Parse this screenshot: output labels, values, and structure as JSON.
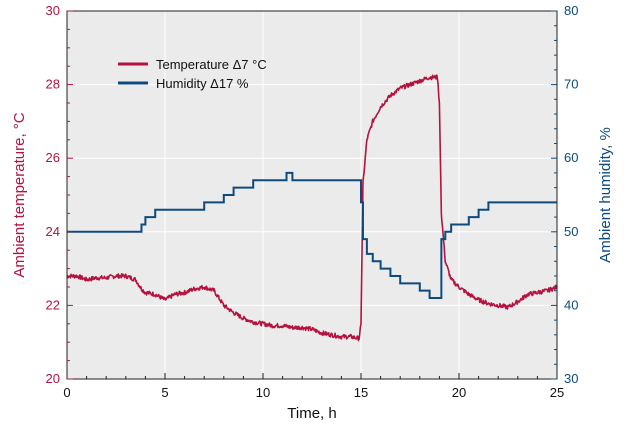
{
  "chart_data": {
    "type": "line",
    "xlabel": "Time, h",
    "ylabel_left": "Ambient temperature, °C",
    "ylabel_right": "Ambient humidity, %",
    "xlim": [
      0,
      25
    ],
    "ylim_left": [
      20,
      30
    ],
    "ylim_right": [
      30,
      80
    ],
    "x_ticks": [
      "0",
      "5",
      "10",
      "15",
      "20",
      "25"
    ],
    "y_left_ticks": [
      "20",
      "22",
      "24",
      "26",
      "28",
      "30"
    ],
    "y_right_ticks": [
      "30",
      "40",
      "50",
      "60",
      "70",
      "80"
    ],
    "grid": true,
    "legend_position": "top-left",
    "colors": {
      "temperature": "#b5123e",
      "humidity": "#0d4a7e",
      "plot_bg": "#ebebeb"
    },
    "series": [
      {
        "name": "Temperature  Δ7 °C",
        "axis": "left",
        "x": [
          0,
          0.5,
          1,
          1.5,
          2,
          2.5,
          3,
          3.5,
          3.8,
          4,
          4.5,
          5,
          5.5,
          6,
          6.5,
          7,
          7.5,
          8,
          8.5,
          9,
          9.5,
          10,
          10.5,
          11,
          11.5,
          12,
          12.5,
          13,
          13.5,
          14,
          14.5,
          14.9,
          15.0,
          15.1,
          15.3,
          15.6,
          16,
          16.5,
          17,
          17.5,
          18,
          18.5,
          18.9,
          19.0,
          19.1,
          19.3,
          19.6,
          20,
          20.5,
          21,
          21.5,
          22,
          22.5,
          23,
          23.5,
          24,
          24.5,
          25
        ],
        "values": [
          22.8,
          22.8,
          22.7,
          22.75,
          22.75,
          22.8,
          22.8,
          22.7,
          22.45,
          22.35,
          22.3,
          22.15,
          22.3,
          22.35,
          22.45,
          22.5,
          22.4,
          22.0,
          21.8,
          21.65,
          21.55,
          21.5,
          21.45,
          21.45,
          21.4,
          21.4,
          21.35,
          21.25,
          21.2,
          21.15,
          21.15,
          21.1,
          21.5,
          25.3,
          26.5,
          27.0,
          27.4,
          27.7,
          27.9,
          28.0,
          28.1,
          28.2,
          28.2,
          27.5,
          24.5,
          23.2,
          22.7,
          22.5,
          22.3,
          22.15,
          22.05,
          22.0,
          21.95,
          22.1,
          22.3,
          22.35,
          22.4,
          22.5
        ]
      },
      {
        "name": "Humidity  Δ17 %",
        "axis": "right",
        "x": [
          0,
          0.5,
          1,
          1.5,
          2,
          2.5,
          3,
          3.5,
          3.8,
          4,
          4.5,
          5,
          5.5,
          6,
          6.5,
          7,
          7.5,
          8,
          8.5,
          9,
          9.5,
          10,
          10.5,
          11,
          11.2,
          11.5,
          12,
          12.5,
          13,
          13.5,
          14,
          14.5,
          14.9,
          15.0,
          15.1,
          15.3,
          15.6,
          16,
          16.5,
          17,
          17.5,
          18,
          18.5,
          18.9,
          19.0,
          19.1,
          19.3,
          19.6,
          20,
          20.5,
          21,
          21.5,
          22,
          22.5,
          23,
          23.5,
          24,
          24.5,
          25
        ],
        "values": [
          50,
          50,
          50,
          50,
          50,
          50,
          50,
          50,
          51,
          52,
          53,
          53,
          53,
          53,
          53,
          54,
          54,
          55,
          56,
          56,
          57,
          57,
          57,
          57,
          58,
          57,
          57,
          57,
          57,
          57,
          57,
          57,
          57,
          54,
          49,
          47,
          46,
          45,
          44,
          43,
          43,
          42,
          41,
          41,
          41,
          49,
          50,
          51,
          51,
          52,
          53,
          54,
          54,
          54,
          54,
          54,
          54,
          54,
          54
        ]
      }
    ]
  }
}
